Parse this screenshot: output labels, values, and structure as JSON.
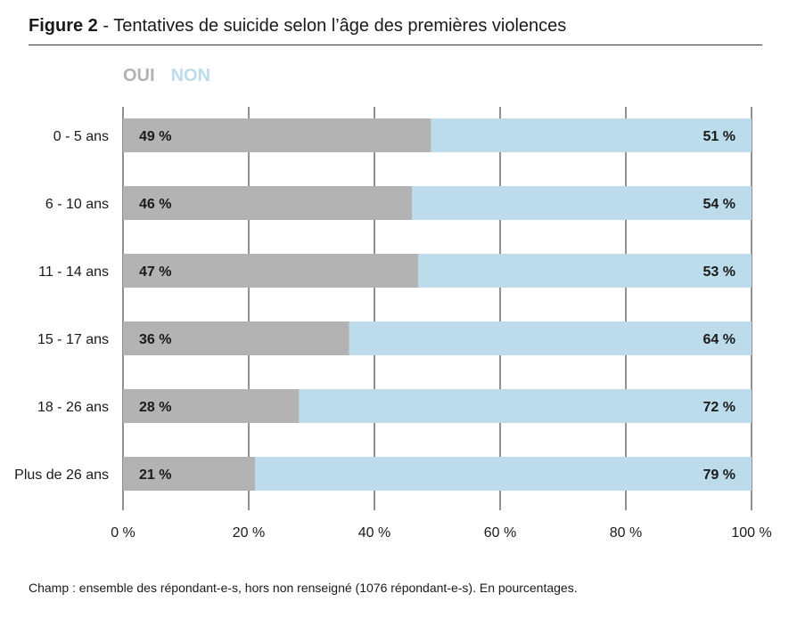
{
  "figure_label": "Figure 2",
  "figure_title": " - Tentatives de suicide selon l’âge des premières violences",
  "note": "Champ : ensemble des répondant-e-s, hors non renseigné (1076 répondant-e-s). En pourcentages.",
  "colors": {
    "oui": "#b3b3b4",
    "non": "#bcdceb",
    "grid": "#222222",
    "text": "#1a1a1a"
  },
  "chart_data": {
    "type": "bar",
    "orientation": "horizontal",
    "stacked": true,
    "categories": [
      "0 - 5 ans",
      "6 - 10 ans",
      "11 - 14 ans",
      "15 - 17 ans",
      "18 - 26 ans",
      "Plus de 26 ans"
    ],
    "series": [
      {
        "name": "OUI",
        "values": [
          49,
          46,
          47,
          36,
          28,
          21
        ],
        "labels": [
          "49 %",
          "46 %",
          "47 %",
          "36 %",
          "28 %",
          "21 %"
        ]
      },
      {
        "name": "NON",
        "values": [
          51,
          54,
          53,
          64,
          72,
          79
        ],
        "labels": [
          "51 %",
          "54 %",
          "53 %",
          "64 %",
          "72 %",
          "79 %"
        ]
      }
    ],
    "xlim": [
      0,
      100
    ],
    "xticks": [
      0,
      20,
      40,
      60,
      80,
      100
    ],
    "xtick_labels": [
      "0 %",
      "20 %",
      "40 %",
      "60 %",
      "80 %",
      "100 %"
    ],
    "grid": true,
    "legend_position": "top-left"
  }
}
